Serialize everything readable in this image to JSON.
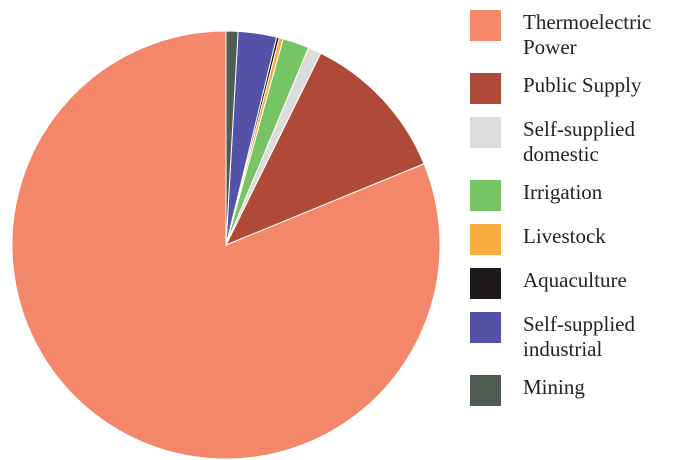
{
  "chart_data": {
    "type": "pie",
    "direction": "counterclockwise",
    "categories": [
      "Thermoelectric Power",
      "Public Supply",
      "Self-supplied domestic",
      "Irrigation",
      "Livestock",
      "Aquaculture",
      "Self-supplied industrial",
      "Mining"
    ],
    "values": [
      81.2,
      11.5,
      1,
      2,
      0.3,
      0.2,
      2.9,
      0.9
    ],
    "colors": [
      "#f4866a",
      "#b04a38",
      "#dcdcdc",
      "#77c465",
      "#f9ad3c",
      "#1e1a1a",
      "#5553a8",
      "#4e5c52"
    ]
  }
}
